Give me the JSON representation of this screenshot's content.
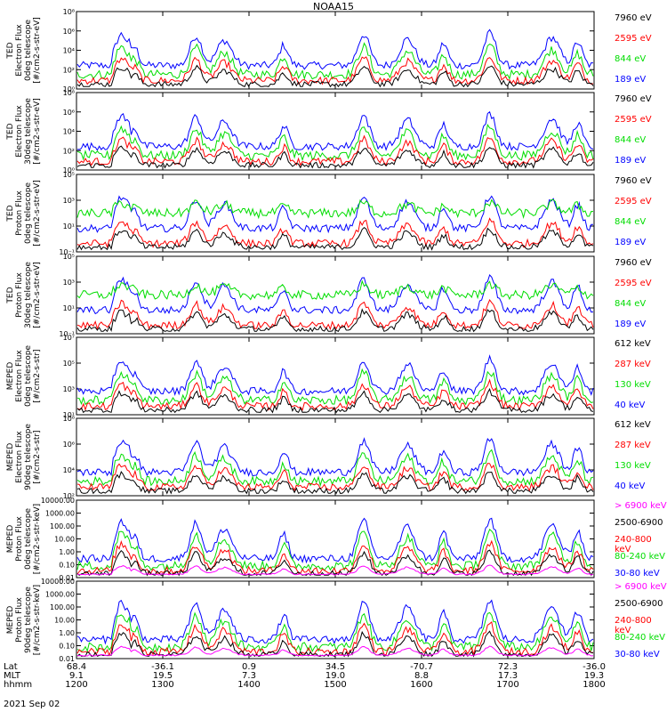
{
  "title": "NOAA15",
  "date": "2021 Sep 02",
  "colors": {
    "blue": "#0000ff",
    "red": "#ff0000",
    "green": "#00dd00",
    "black": "#000000",
    "magenta": "#ff00ff"
  },
  "footer": {
    "rows": [
      {
        "label": "Lat",
        "values": [
          "68.4",
          "-36.1",
          "0.9",
          "34.5",
          "-70.7",
          "72.3",
          "-36.0"
        ]
      },
      {
        "label": "MLT",
        "values": [
          "9.1",
          "19.5",
          "7.3",
          "19.0",
          "8.8",
          "17.3",
          "19.3"
        ]
      },
      {
        "label": "hhmm",
        "values": [
          "1200",
          "1300",
          "1400",
          "1500",
          "1600",
          "1700",
          "1800"
        ]
      }
    ]
  },
  "chart_data": [
    {
      "type": "line",
      "ylabel": [
        "TED",
        "Electron Flux",
        "0deg telescope",
        "[#/cm2-s-str-eV]"
      ],
      "yscale": "log",
      "yticks": [
        "10⁰",
        "10²",
        "10⁴",
        "10⁶",
        "10⁸"
      ],
      "legend": [
        {
          "name": "7960 eV",
          "color": "black"
        },
        {
          "name": "2595 eV",
          "color": "red"
        },
        {
          "name": "844 eV",
          "color": "green"
        },
        {
          "name": "189 eV",
          "color": "blue"
        }
      ]
    },
    {
      "type": "line",
      "ylabel": [
        "TED",
        "Electron Flux",
        "30deg telescope",
        "[#/cm2-s-str-eV]"
      ],
      "yscale": "log",
      "yticks": [
        "10⁰",
        "10²",
        "10⁴",
        "10⁶",
        "10⁸"
      ],
      "legend": [
        {
          "name": "7960 eV",
          "color": "black"
        },
        {
          "name": "2595 eV",
          "color": "red"
        },
        {
          "name": "844 eV",
          "color": "green"
        },
        {
          "name": "189 eV",
          "color": "blue"
        }
      ]
    },
    {
      "type": "line",
      "ylabel": [
        "TED",
        "Proton Flux",
        "0deg telescope",
        "[#/cm2-s-str-eV]"
      ],
      "yscale": "log",
      "yticks": [
        "10⁻¹",
        "10¹",
        "10³",
        "10⁵"
      ],
      "legend": [
        {
          "name": "7960 eV",
          "color": "black"
        },
        {
          "name": "2595 eV",
          "color": "red"
        },
        {
          "name": "844 eV",
          "color": "green"
        },
        {
          "name": "189 eV",
          "color": "blue"
        }
      ]
    },
    {
      "type": "line",
      "ylabel": [
        "TED",
        "Proton Flux",
        "30deg telescope",
        "[#/cm2-s-str-eV]"
      ],
      "yscale": "log",
      "yticks": [
        "10⁻¹",
        "10¹",
        "10³",
        "10⁵"
      ],
      "legend": [
        {
          "name": "7960 eV",
          "color": "black"
        },
        {
          "name": "2595 eV",
          "color": "red"
        },
        {
          "name": "844 eV",
          "color": "green"
        },
        {
          "name": "189 eV",
          "color": "blue"
        }
      ]
    },
    {
      "type": "line",
      "ylabel": [
        "MEPED",
        "Electron Flux",
        "0deg telescope",
        "[#/cm2-s-str]"
      ],
      "yscale": "log",
      "yticks": [
        "10¹",
        "10³",
        "10⁵",
        "10⁷"
      ],
      "legend": [
        {
          "name": "612 keV",
          "color": "black"
        },
        {
          "name": "287 keV",
          "color": "red"
        },
        {
          "name": "130 keV",
          "color": "green"
        },
        {
          "name": "40 keV",
          "color": "blue"
        }
      ]
    },
    {
      "type": "line",
      "ylabel": [
        "MEPED",
        "Electron Flux",
        "90deg telescope",
        "[#/cm2-s-str]"
      ],
      "yscale": "log",
      "yticks": [
        "10²",
        "10⁴",
        "10⁶",
        "10⁸"
      ],
      "legend": [
        {
          "name": "612 keV",
          "color": "black"
        },
        {
          "name": "287 keV",
          "color": "red"
        },
        {
          "name": "130 keV",
          "color": "green"
        },
        {
          "name": "40 keV",
          "color": "blue"
        }
      ]
    },
    {
      "type": "line",
      "ylabel": [
        "MEPED",
        "Proton Flux",
        "0deg telescope",
        "[#/cm2-s-str-keV]"
      ],
      "yscale": "log",
      "yticks": [
        "0.01",
        "0.10",
        "1.00",
        "10.00",
        "100.00",
        "1000.00",
        "10000.00"
      ],
      "legend": [
        {
          "name": "> 6900 keV",
          "color": "magenta"
        },
        {
          "name": "2500-6900",
          "color": "black"
        },
        {
          "name": "240-800 keV",
          "color": "red"
        },
        {
          "name": "80-240 keV",
          "color": "green"
        },
        {
          "name": "30-80 keV",
          "color": "blue"
        }
      ]
    },
    {
      "type": "line",
      "ylabel": [
        "MEPED",
        "Proton Flux",
        "90deg telescope",
        "[#/cm2-s-str-keV]"
      ],
      "yscale": "log",
      "yticks": [
        "0.01",
        "0.10",
        "1.00",
        "10.00",
        "100.00",
        "1000.00",
        "10000.00"
      ],
      "legend": [
        {
          "name": "> 6900 keV",
          "color": "magenta"
        },
        {
          "name": "2500-6900",
          "color": "black"
        },
        {
          "name": "240-800 keV",
          "color": "red"
        },
        {
          "name": "80-240 keV",
          "color": "green"
        },
        {
          "name": "30-80 keV",
          "color": "blue"
        }
      ]
    }
  ]
}
